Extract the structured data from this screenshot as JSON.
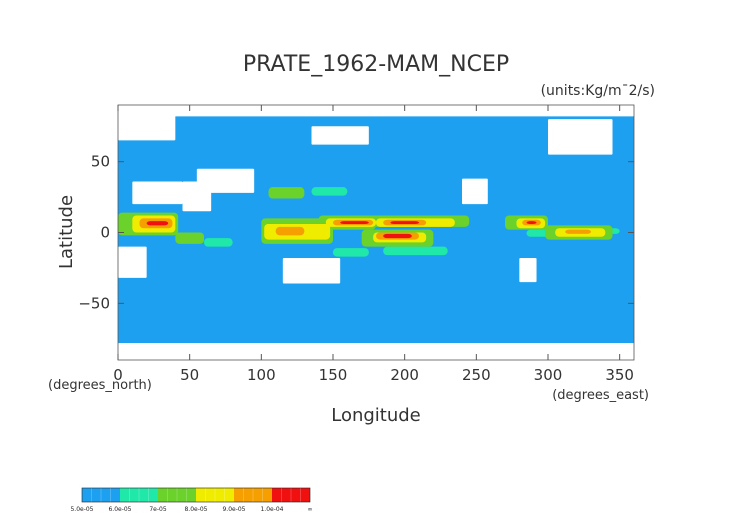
{
  "chart_data": {
    "type": "heatmap",
    "title": "PRATE_1962-MAM_NCEP",
    "units": "(units:Kg/m¯2/s)",
    "xlabel": "Longitude",
    "ylabel": "Latitude",
    "x_unit_label": "(degrees_east)",
    "y_unit_label": "(degrees_north)",
    "xlim": [
      0,
      360
    ],
    "ylim": [
      -90,
      90
    ],
    "x_ticks": [
      "0",
      "50",
      "100",
      "150",
      "200",
      "250",
      "300",
      "350"
    ],
    "x_tick_values": [
      0,
      50,
      100,
      150,
      200,
      250,
      300,
      350
    ],
    "y_ticks": [
      "50",
      "0",
      "−50"
    ],
    "y_tick_values": [
      50,
      0,
      -50
    ],
    "colorbar": {
      "labels": [
        "5.0e-05",
        "6.0e-05",
        "7e-05",
        "8.0e-05",
        "9.0e-05",
        "1.0e-04",
        "∞"
      ],
      "bins": [
        {
          "min": 5e-05,
          "max": 6e-05,
          "color": "#1ea0f0"
        },
        {
          "min": 6e-05,
          "max": 7e-05,
          "color": "#20e8a8"
        },
        {
          "min": 7e-05,
          "max": 8e-05,
          "color": "#6ad22a"
        },
        {
          "min": 8e-05,
          "max": 9e-05,
          "color": "#f0ec00"
        },
        {
          "min": 9e-05,
          "max": 0.0001,
          "color": "#f5a000"
        },
        {
          "min": 0.0001,
          "max": null,
          "color": "#f01010"
        }
      ]
    },
    "background_color": "#1ea0f0",
    "below_range_color": "#ffffff",
    "regions": [
      {
        "level": 0,
        "lon": [
          0,
          20
        ],
        "lat": [
          -32,
          -10
        ]
      },
      {
        "level": 0,
        "lon": [
          10,
          45
        ],
        "lat": [
          20,
          36
        ]
      },
      {
        "level": 0,
        "lon": [
          45,
          65
        ],
        "lat": [
          15,
          36
        ]
      },
      {
        "level": 0,
        "lon": [
          55,
          95
        ],
        "lat": [
          28,
          45
        ]
      },
      {
        "level": 0,
        "lon": [
          115,
          155
        ],
        "lat": [
          -36,
          -18
        ]
      },
      {
        "level": 0,
        "lon": [
          0,
          40
        ],
        "lat": [
          65,
          85
        ]
      },
      {
        "level": 0,
        "lon": [
          135,
          175
        ],
        "lat": [
          62,
          75
        ]
      },
      {
        "level": 0,
        "lon": [
          240,
          258
        ],
        "lat": [
          20,
          38
        ]
      },
      {
        "level": 0,
        "lon": [
          280,
          292
        ],
        "lat": [
          -35,
          -18
        ]
      },
      {
        "level": 0,
        "lon": [
          300,
          345
        ],
        "lat": [
          55,
          80
        ]
      },
      {
        "level": 0,
        "lon": [
          0,
          360
        ],
        "lat": [
          -90,
          -78
        ]
      },
      {
        "level": 0,
        "lon": [
          0,
          360
        ],
        "lat": [
          82,
          90
        ]
      },
      {
        "level": 1,
        "lon": [
          285,
          310
        ],
        "lat": [
          -3,
          2
        ]
      },
      {
        "level": 1,
        "lon": [
          318,
          350
        ],
        "lat": [
          -1,
          3
        ]
      },
      {
        "level": 1,
        "lon": [
          60,
          80
        ],
        "lat": [
          -10,
          -4
        ]
      },
      {
        "level": 1,
        "lon": [
          150,
          175
        ],
        "lat": [
          -17,
          -11
        ]
      },
      {
        "level": 1,
        "lon": [
          185,
          230
        ],
        "lat": [
          -16,
          -10
        ]
      },
      {
        "level": 1,
        "lon": [
          135,
          160
        ],
        "lat": [
          26,
          32
        ]
      },
      {
        "level": 2,
        "lon": [
          0,
          42
        ],
        "lat": [
          -2,
          14
        ]
      },
      {
        "level": 2,
        "lon": [
          40,
          60
        ],
        "lat": [
          -8,
          0
        ]
      },
      {
        "level": 2,
        "lon": [
          100,
          150
        ],
        "lat": [
          -8,
          10
        ]
      },
      {
        "level": 2,
        "lon": [
          140,
          180
        ],
        "lat": [
          2,
          12
        ]
      },
      {
        "level": 2,
        "lon": [
          175,
          245
        ],
        "lat": [
          4,
          12
        ]
      },
      {
        "level": 2,
        "lon": [
          170,
          220
        ],
        "lat": [
          -10,
          2
        ]
      },
      {
        "level": 2,
        "lon": [
          270,
          300
        ],
        "lat": [
          2,
          12
        ]
      },
      {
        "level": 2,
        "lon": [
          298,
          345
        ],
        "lat": [
          -5,
          5
        ]
      },
      {
        "level": 2,
        "lon": [
          105,
          130
        ],
        "lat": [
          24,
          32
        ]
      },
      {
        "level": 3,
        "lon": [
          10,
          40
        ],
        "lat": [
          0,
          12
        ]
      },
      {
        "level": 3,
        "lon": [
          102,
          148
        ],
        "lat": [
          -5,
          6
        ]
      },
      {
        "level": 3,
        "lon": [
          145,
          180
        ],
        "lat": [
          4,
          10
        ]
      },
      {
        "level": 3,
        "lon": [
          180,
          235
        ],
        "lat": [
          4,
          10
        ]
      },
      {
        "level": 3,
        "lon": [
          178,
          215
        ],
        "lat": [
          -7,
          0
        ]
      },
      {
        "level": 3,
        "lon": [
          278,
          298
        ],
        "lat": [
          3,
          10
        ]
      },
      {
        "level": 3,
        "lon": [
          305,
          340
        ],
        "lat": [
          -3,
          3
        ]
      },
      {
        "level": 4,
        "lon": [
          15,
          38
        ],
        "lat": [
          3,
          10
        ]
      },
      {
        "level": 4,
        "lon": [
          110,
          130
        ],
        "lat": [
          -2,
          4
        ]
      },
      {
        "level": 4,
        "lon": [
          150,
          178
        ],
        "lat": [
          5,
          9
        ]
      },
      {
        "level": 4,
        "lon": [
          185,
          215
        ],
        "lat": [
          5,
          9
        ]
      },
      {
        "level": 4,
        "lon": [
          180,
          210
        ],
        "lat": [
          -5,
          0
        ]
      },
      {
        "level": 4,
        "lon": [
          282,
          295
        ],
        "lat": [
          5,
          9
        ]
      },
      {
        "level": 4,
        "lon": [
          312,
          330
        ],
        "lat": [
          -1,
          2
        ]
      },
      {
        "level": 5,
        "lon": [
          20,
          35
        ],
        "lat": [
          5,
          8
        ]
      },
      {
        "level": 5,
        "lon": [
          155,
          175
        ],
        "lat": [
          6,
          8
        ]
      },
      {
        "level": 5,
        "lon": [
          190,
          210
        ],
        "lat": [
          6,
          8
        ]
      },
      {
        "level": 5,
        "lon": [
          185,
          205
        ],
        "lat": [
          -4,
          -1
        ]
      },
      {
        "level": 5,
        "lon": [
          285,
          292
        ],
        "lat": [
          6,
          8
        ]
      }
    ]
  }
}
